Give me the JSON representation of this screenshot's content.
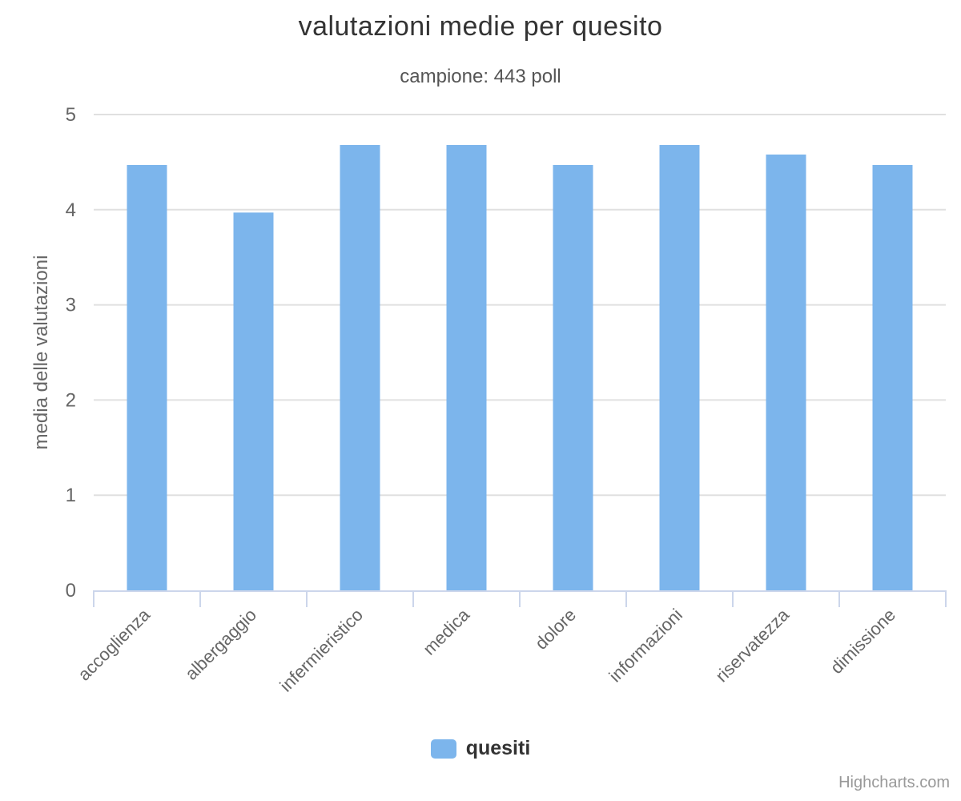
{
  "chart_data": {
    "type": "bar",
    "title": "valutazioni medie per quesito",
    "subtitle": "campione: 443 poll",
    "categories": [
      "accoglienza",
      "albergaggio",
      "infermieristico",
      "medica",
      "dolore",
      "informazioni",
      "riservatezza",
      "dimissione"
    ],
    "series": [
      {
        "name": "quesiti",
        "values": [
          4.47,
          3.97,
          4.68,
          4.68,
          4.47,
          4.68,
          4.58,
          4.47
        ]
      }
    ],
    "xlabel": "",
    "ylabel": "media delle valutazioni",
    "ylim": [
      0,
      5
    ],
    "yticks": [
      0,
      1,
      2,
      3,
      4,
      5
    ],
    "grid": true,
    "legend_position": "bottom-center",
    "credits": "Highcharts.com"
  },
  "colors": {
    "bar": "#7cb5ec",
    "title": "#333333",
    "subtitle": "#555555",
    "axis_text": "#666666",
    "grid": "#e0e0e0",
    "axis_line": "#ccd6eb",
    "legend_text": "#333333",
    "credits": "#999999",
    "background": "#ffffff"
  }
}
